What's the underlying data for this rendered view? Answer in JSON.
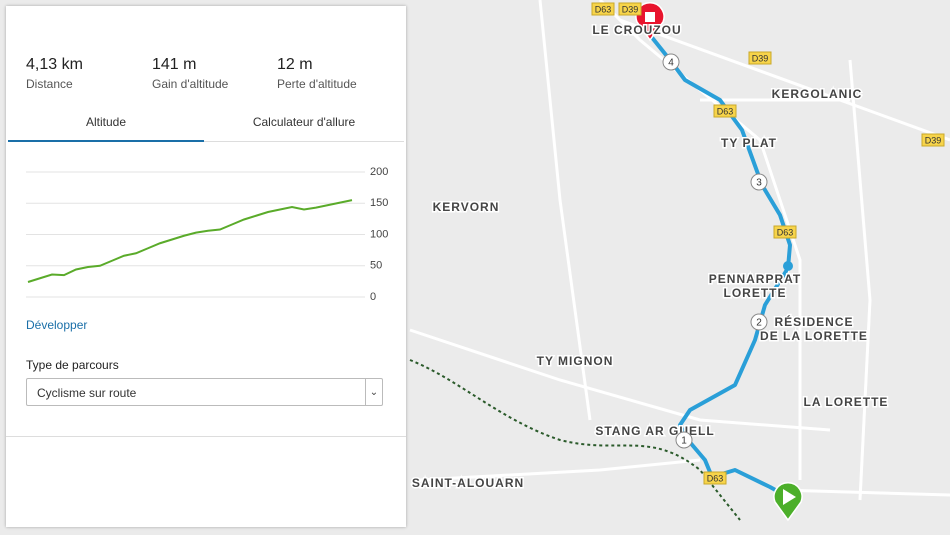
{
  "stats": [
    {
      "value": "4,13 km",
      "label": "Distance"
    },
    {
      "value": "141 m",
      "label": "Gain d'altitude"
    },
    {
      "value": "12 m",
      "label": "Perte d'altitude"
    }
  ],
  "tabs": [
    "Altitude",
    "Calculateur d'allure"
  ],
  "chart_data": {
    "type": "line",
    "values": [
      24,
      30,
      36,
      35,
      44,
      48,
      50,
      58,
      66,
      70,
      78,
      86,
      92,
      98,
      103,
      106,
      108,
      116,
      124,
      130,
      136,
      140,
      144,
      140,
      143,
      147,
      151,
      155
    ],
    "color": "#5aab2a",
    "ylim": [
      0,
      200
    ],
    "yticks": [
      0,
      50,
      100,
      150,
      200
    ],
    "grid": true
  },
  "expand_link": "Développer",
  "route_type": {
    "label": "Type de parcours",
    "selected": "Cyclisme sur route"
  },
  "map": {
    "places": [
      "LE CROUZOU",
      "KERGOLANIC",
      "TY PLAT",
      "KERVORN",
      "PENNARPRAT",
      "LORETTE",
      "RÉSIDENCE",
      "DE LA LORETTE",
      "TY MIGNON",
      "STANG AR GUELL",
      "LA LORETTE",
      "SAINT-ALOUARN"
    ],
    "roads": [
      "D63",
      "D39",
      "D39",
      "D39",
      "D63",
      "D63",
      "D63"
    ],
    "markers": [
      "1",
      "2",
      "3",
      "4"
    ]
  }
}
